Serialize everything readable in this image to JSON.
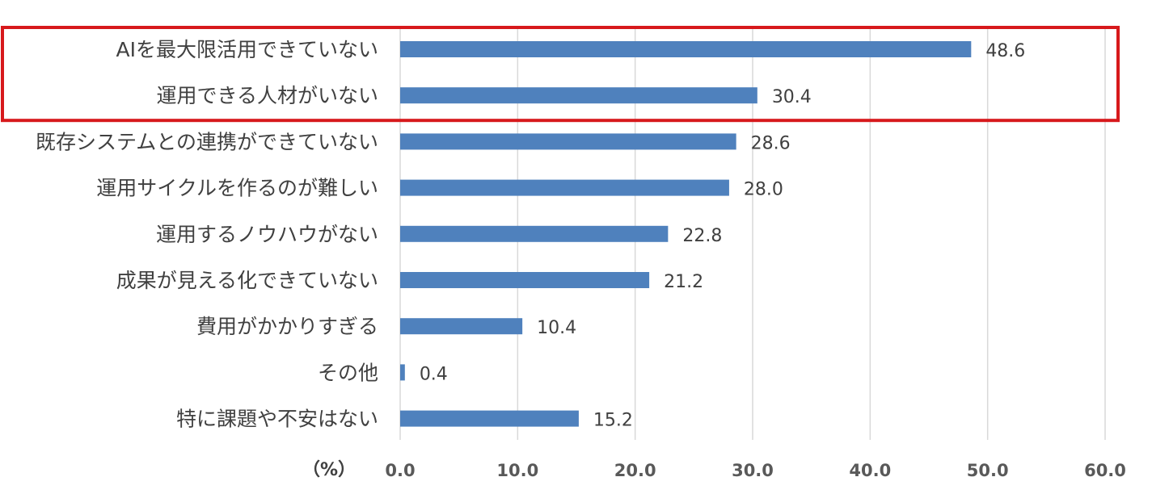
{
  "colors": {
    "bar": "#4f81bd",
    "grid": "#d9d9d9",
    "highlight": "#d7191c"
  },
  "chart_data": {
    "type": "bar",
    "orientation": "horizontal",
    "categories": [
      "AIを最大限活用できていない",
      "運用できる人材がいない",
      "既存システムとの連携ができていない",
      "運用サイクルを作るのが難しい",
      "運用するノウハウがない",
      "成果が見える化できていない",
      "費用がかかりすぎる",
      "その他",
      "特に課題や不安はない"
    ],
    "values": [
      48.6,
      30.4,
      28.6,
      28.0,
      22.8,
      21.2,
      10.4,
      0.4,
      15.2
    ],
    "value_labels": [
      "48.6",
      "30.4",
      "28.6",
      "28.0",
      "22.8",
      "21.2",
      "10.4",
      "0.4",
      "15.2"
    ],
    "x_ticks": [
      "0.0",
      "10.0",
      "20.0",
      "30.0",
      "40.0",
      "50.0",
      "60.0"
    ],
    "xlim": [
      0,
      60
    ],
    "unit_label": "（%）",
    "grid": "vertical",
    "highlighted_categories": [
      0,
      1
    ]
  }
}
